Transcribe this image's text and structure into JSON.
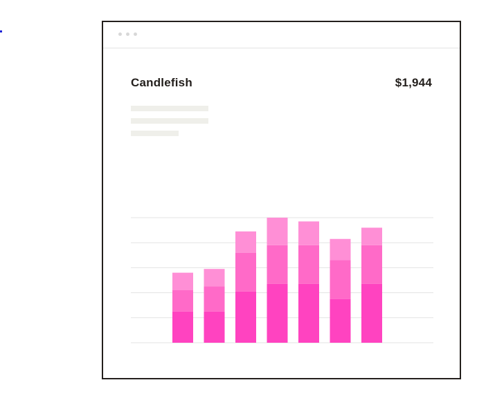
{
  "window": {
    "title": "Candlefish",
    "amount": "$1,944"
  },
  "colors": {
    "frame": "#231f1c",
    "gridline": "#e3e3e3",
    "placeholder": "#efefea",
    "seg_bottom": "#ff43c0",
    "seg_middle": "#ff6ac8",
    "seg_top": "#ff8fd6"
  },
  "chart_data": {
    "type": "bar",
    "stacked": true,
    "grid": true,
    "ylim": [
      0,
      5
    ],
    "categories": [
      "",
      "",
      "",
      "",
      "",
      "",
      ""
    ],
    "series": [
      {
        "values": [
          1.25,
          1.25,
          2.05,
          2.35,
          2.35,
          1.75,
          2.35
        ]
      },
      {
        "values": [
          0.85,
          1.0,
          1.55,
          1.55,
          1.55,
          1.55,
          1.55
        ]
      },
      {
        "values": [
          0.7,
          0.7,
          0.85,
          1.1,
          0.95,
          0.85,
          0.7
        ]
      }
    ]
  }
}
